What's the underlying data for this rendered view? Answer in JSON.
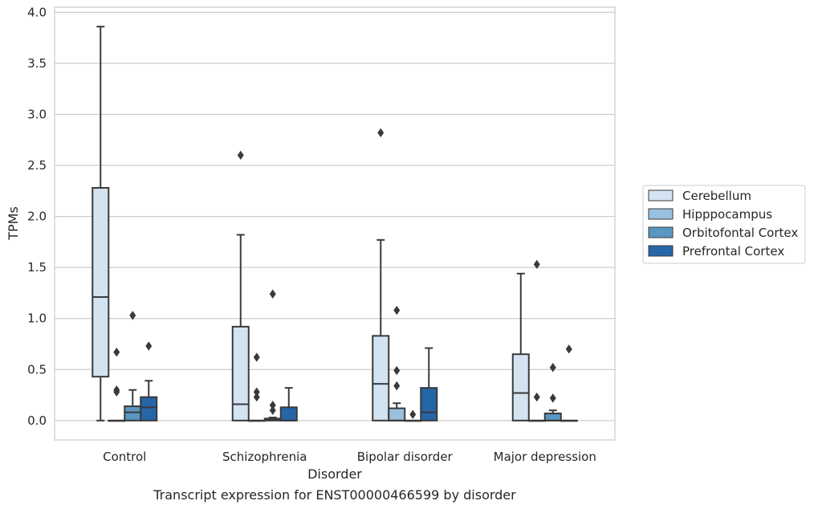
{
  "chart_data": {
    "type": "box",
    "title": "",
    "caption": "Transcript expression for ENST00000466599 by disorder",
    "xlabel": "Disorder",
    "ylabel": "TPMs",
    "categories": [
      "Control",
      "Schizophrenia",
      "Bipolar disorder",
      "Major depression"
    ],
    "ylim": [
      -0.19,
      4.05
    ],
    "yticks": [
      "0.0",
      "0.5",
      "1.0",
      "1.5",
      "2.0",
      "2.5",
      "3.0",
      "3.5",
      "4.0"
    ],
    "grid": "horizontal",
    "legend_position": "right",
    "series": [
      {
        "name": "Cerebellum",
        "color": "#d3e3f1",
        "boxes": [
          {
            "min": 0.0,
            "q1": 0.43,
            "median": 1.21,
            "q3": 2.28,
            "max": 3.86,
            "outliers": []
          },
          {
            "min": 0.0,
            "q1": 0.0,
            "median": 0.16,
            "q3": 0.92,
            "max": 1.82,
            "outliers": [
              2.6
            ]
          },
          {
            "min": 0.0,
            "q1": 0.0,
            "median": 0.36,
            "q3": 0.83,
            "max": 1.77,
            "outliers": [
              2.82
            ]
          },
          {
            "min": 0.0,
            "q1": 0.0,
            "median": 0.27,
            "q3": 0.65,
            "max": 1.44,
            "outliers": []
          }
        ]
      },
      {
        "name": "Hipppocampus",
        "color": "#9ac0dd",
        "boxes": [
          {
            "min": 0.0,
            "q1": 0.0,
            "median": 0.0,
            "q3": 0.0,
            "max": 0.0,
            "outliers": [
              0.67,
              0.3,
              0.28
            ]
          },
          {
            "min": 0.0,
            "q1": 0.0,
            "median": 0.0,
            "q3": 0.0,
            "max": 0.0,
            "outliers": [
              0.62,
              0.28,
              0.23
            ]
          },
          {
            "min": 0.0,
            "q1": 0.0,
            "median": 0.0,
            "q3": 0.12,
            "max": 0.17,
            "outliers": [
              1.08,
              0.49,
              0.34
            ]
          },
          {
            "min": 0.0,
            "q1": 0.0,
            "median": 0.0,
            "q3": 0.0,
            "max": 0.0,
            "outliers": [
              1.53,
              0.23
            ]
          }
        ]
      },
      {
        "name": "Orbitofontal Cortex",
        "color": "#5a96c2",
        "boxes": [
          {
            "min": 0.0,
            "q1": 0.0,
            "median": 0.08,
            "q3": 0.14,
            "max": 0.3,
            "outliers": [
              1.03
            ]
          },
          {
            "min": 0.0,
            "q1": 0.0,
            "median": 0.01,
            "q3": 0.02,
            "max": 0.03,
            "outliers": [
              1.24,
              0.15,
              0.1
            ]
          },
          {
            "min": 0.0,
            "q1": 0.0,
            "median": 0.0,
            "q3": 0.0,
            "max": 0.0,
            "outliers": [
              0.06
            ]
          },
          {
            "min": 0.0,
            "q1": 0.0,
            "median": 0.0,
            "q3": 0.07,
            "max": 0.1,
            "outliers": [
              0.52,
              0.22
            ]
          }
        ]
      },
      {
        "name": "Prefrontal Cortex",
        "color": "#2566a8",
        "boxes": [
          {
            "min": 0.0,
            "q1": 0.0,
            "median": 0.13,
            "q3": 0.23,
            "max": 0.39,
            "outliers": [
              0.73
            ]
          },
          {
            "min": 0.0,
            "q1": 0.0,
            "median": 0.0,
            "q3": 0.13,
            "max": 0.32,
            "outliers": []
          },
          {
            "min": 0.0,
            "q1": 0.0,
            "median": 0.08,
            "q3": 0.32,
            "max": 0.71,
            "outliers": []
          },
          {
            "min": 0.0,
            "q1": 0.0,
            "median": 0.0,
            "q3": 0.0,
            "max": 0.0,
            "outliers": [
              0.7
            ]
          }
        ]
      }
    ]
  }
}
